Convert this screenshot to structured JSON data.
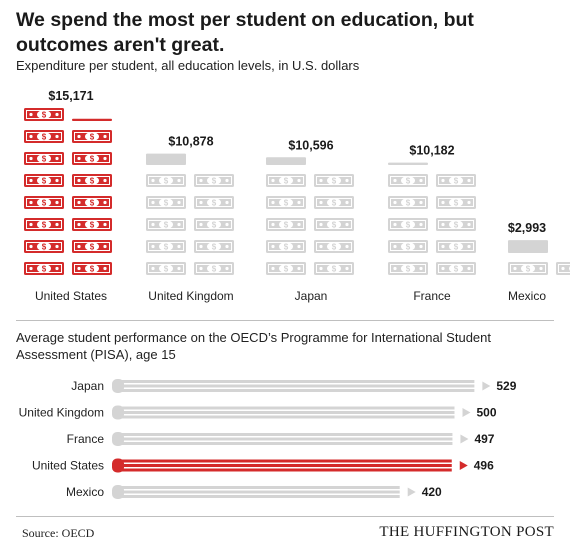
{
  "header": {
    "title": "We spend the most per student on education, but outcomes aren't great.",
    "subtitle": "Expenditure per student, all education levels, in U.S. dollars"
  },
  "pisa": {
    "title": "Average student performance on the OECD’s Programme for International Student Assessment (PISA), age 15"
  },
  "footer": {
    "source": "Source: OECD",
    "brand": "THE HUFFINGTON POST"
  },
  "colors": {
    "highlight": "#d42b2b",
    "neutral": "#d4d4d4",
    "bill_symbol_neutral": "#ffffff"
  },
  "chart_data": [
    {
      "type": "bar",
      "categories": [
        "United States",
        "United Kingdom",
        "Japan",
        "France",
        "Mexico"
      ],
      "values": [
        15171,
        10878,
        10596,
        10182,
        2993
      ],
      "value_labels": [
        "$15,171",
        "$10,878",
        "$10,596",
        "$10,182",
        "$2,993"
      ],
      "highlight": "United States",
      "icon": "dollar-bill-icon",
      "icon_unit": 1000
    },
    {
      "type": "bar",
      "orientation": "horizontal",
      "categories": [
        "Japan",
        "United Kingdom",
        "France",
        "United States",
        "Mexico"
      ],
      "values": [
        529,
        500,
        497,
        496,
        420
      ],
      "highlight": "United States",
      "xlim": [
        0,
        540
      ]
    }
  ]
}
